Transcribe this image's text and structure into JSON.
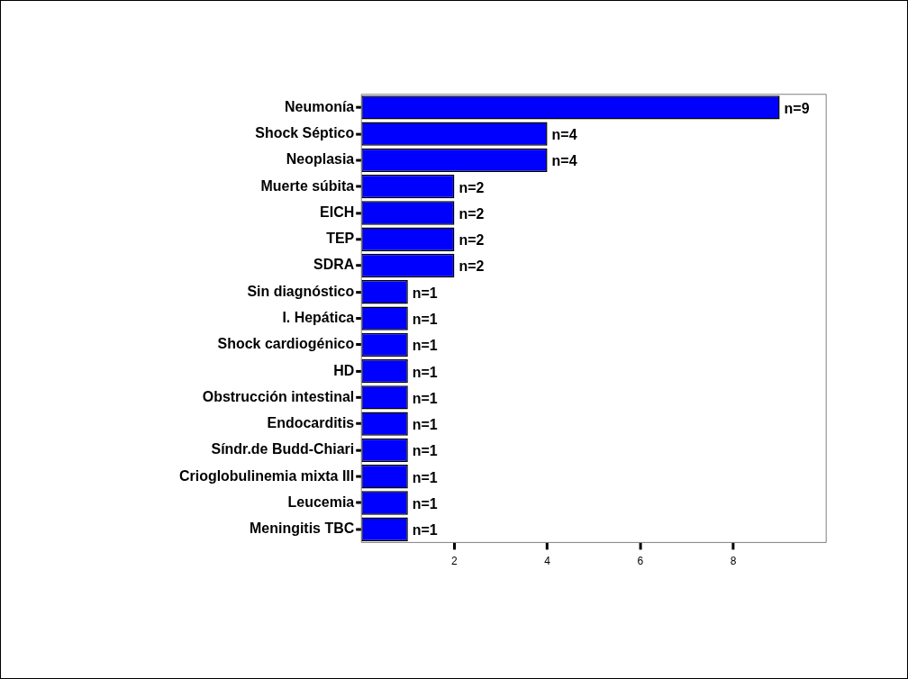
{
  "chart_data": {
    "type": "bar",
    "orientation": "horizontal",
    "categories": [
      "Neumonía",
      "Shock Séptico",
      "Neoplasia",
      "Muerte súbita",
      "EICH",
      "TEP",
      "SDRA",
      "Sin diagnóstico",
      "I. Hepática",
      "Shock cardiogénico",
      "HD",
      "Obstrucción intestinal",
      "Endocarditis",
      "Síndr.de Budd-Chiari",
      "Crioglobulinemia mixta III",
      "Leucemia",
      "Meningitis TBC"
    ],
    "values": [
      9,
      4,
      4,
      2,
      2,
      2,
      2,
      1,
      1,
      1,
      1,
      1,
      1,
      1,
      1,
      1,
      1
    ],
    "value_labels": [
      "n=9",
      "n=4",
      "n=4",
      "n=2",
      "n=2",
      "n=2",
      "n=2",
      "n=1",
      "n=1",
      "n=1",
      "n=1",
      "n=1",
      "n=1",
      "n=1",
      "n=1",
      "n=1",
      "n=1"
    ],
    "color": "#0000ff",
    "xlim": [
      0,
      10
    ],
    "xticks": [
      2,
      4,
      6,
      8
    ],
    "grid": false,
    "legend": false
  }
}
